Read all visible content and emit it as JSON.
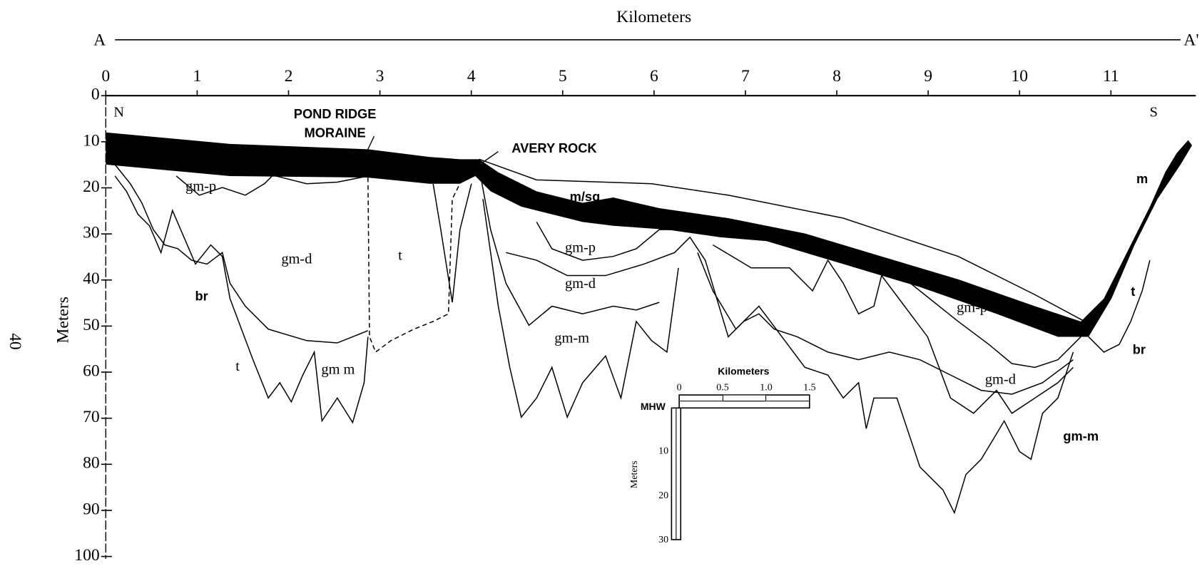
{
  "header": {
    "title": "Kilometers",
    "left_end": "A",
    "right_end": "A'"
  },
  "x_axis": {
    "ticks": [
      "0",
      "1",
      "2",
      "3",
      "4",
      "5",
      "6",
      "7",
      "8",
      "9",
      "10",
      "11"
    ]
  },
  "y_axis": {
    "label": "Meters",
    "ticks": [
      "0",
      "10",
      "20",
      "30",
      "40",
      "50",
      "60",
      "70",
      "80",
      "90",
      "100"
    ]
  },
  "page_number": "40",
  "labels": [
    "N",
    "S",
    "POND RIDGE",
    "MORAINE",
    "AVERY ROCK",
    "gm-p",
    "m/sg",
    "gm-d",
    "t",
    "br",
    "gm-p",
    "gm-d",
    "gm-m",
    "t",
    "gm m",
    "gm-p",
    "gm-d",
    "br",
    "t",
    "m",
    "gm-m"
  ],
  "inset": {
    "title": "Kilometers",
    "x_ticks": [
      "0",
      "0.5",
      "1.0",
      "1.5"
    ],
    "datum": "MHW",
    "y_label": "Meters",
    "y_ticks": [
      "10",
      "20",
      "30"
    ]
  }
}
